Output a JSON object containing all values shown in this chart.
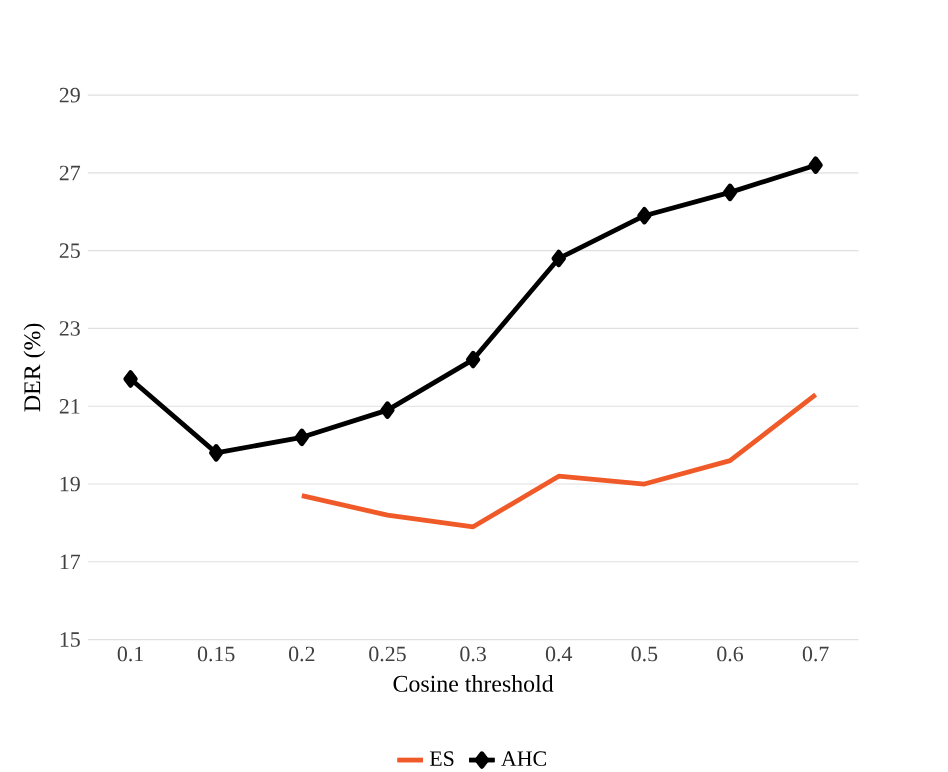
{
  "chart_data": {
    "type": "line",
    "xlabel": "Cosine threshold",
    "ylabel": "DER (%)",
    "categories": [
      "0.1",
      "0.15",
      "0.2",
      "0.25",
      "0.3",
      "0.4",
      "0.5",
      "0.6",
      "0.7"
    ],
    "series": [
      {
        "name": "ES",
        "color": "#f05a28",
        "marker": "none",
        "values": [
          null,
          null,
          18.7,
          18.2,
          17.9,
          19.2,
          19.0,
          19.6,
          21.3
        ]
      },
      {
        "name": "AHC",
        "color": "#000000",
        "marker": "diamond",
        "values": [
          21.7,
          19.8,
          20.2,
          20.9,
          22.2,
          24.8,
          25.9,
          26.5,
          27.2
        ]
      }
    ],
    "ylim": [
      15,
      29
    ],
    "yticks": [
      15,
      17,
      19,
      21,
      23,
      25,
      27,
      29
    ],
    "grid": "y",
    "legend": "bottom"
  }
}
